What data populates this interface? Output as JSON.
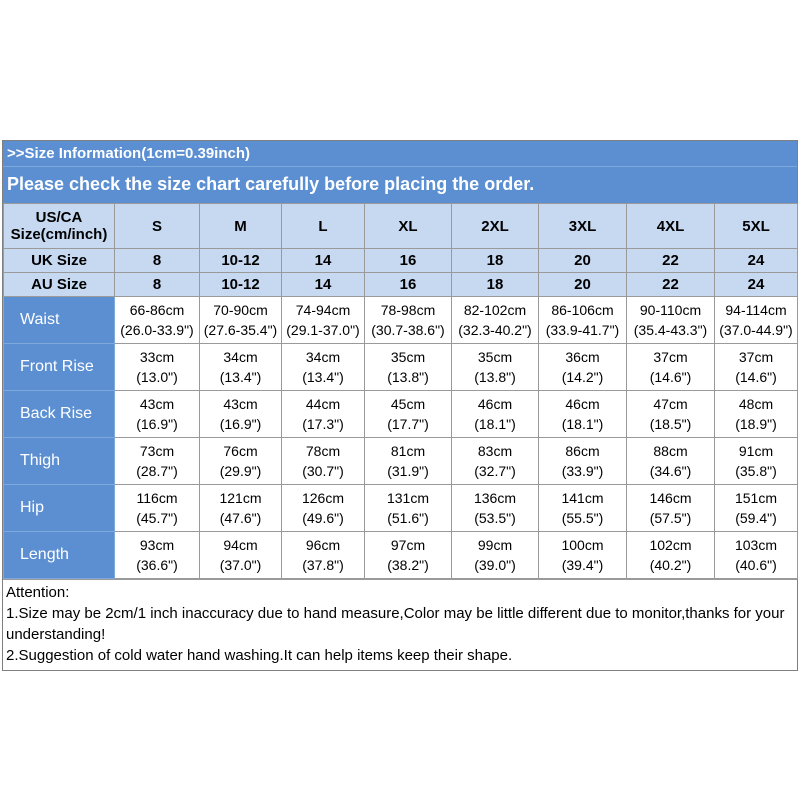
{
  "header": {
    "info": ">>Size Information(1cm=0.39inch)",
    "notice": "Please check the size chart carefully before placing the order."
  },
  "table": {
    "corner": [
      "US/CA",
      "Size(cm/inch)"
    ],
    "sizes": [
      "S",
      "M",
      "L",
      "XL",
      "2XL",
      "3XL",
      "4XL",
      "5XL"
    ],
    "uk": {
      "label": "UK Size",
      "values": [
        "8",
        "10-12",
        "14",
        "16",
        "18",
        "20",
        "22",
        "24"
      ]
    },
    "au": {
      "label": "AU Size",
      "values": [
        "8",
        "10-12",
        "14",
        "16",
        "18",
        "20",
        "22",
        "24"
      ]
    },
    "rows": [
      {
        "label": "Waist",
        "cm": [
          "66-86cm",
          "70-90cm",
          "74-94cm",
          "78-98cm",
          "82-102cm",
          "86-106cm",
          "90-110cm",
          "94-114cm"
        ],
        "inch": [
          "(26.0-33.9\")",
          "(27.6-35.4\")",
          "(29.1-37.0\")",
          "(30.7-38.6\")",
          "(32.3-40.2\")",
          "(33.9-41.7\")",
          "(35.4-43.3\")",
          "(37.0-44.9\")"
        ]
      },
      {
        "label": "Front Rise",
        "cm": [
          "33cm",
          "34cm",
          "34cm",
          "35cm",
          "35cm",
          "36cm",
          "37cm",
          "37cm"
        ],
        "inch": [
          "(13.0\")",
          "(13.4\")",
          "(13.4\")",
          "(13.8\")",
          "(13.8\")",
          "(14.2\")",
          "(14.6\")",
          "(14.6\")"
        ]
      },
      {
        "label": "Back Rise",
        "cm": [
          "43cm",
          "43cm",
          "44cm",
          "45cm",
          "46cm",
          "46cm",
          "47cm",
          "48cm"
        ],
        "inch": [
          "(16.9\")",
          "(16.9\")",
          "(17.3\")",
          "(17.7\")",
          "(18.1\")",
          "(18.1\")",
          "(18.5\")",
          "(18.9\")"
        ]
      },
      {
        "label": "Thigh",
        "cm": [
          "73cm",
          "76cm",
          "78cm",
          "81cm",
          "83cm",
          "86cm",
          "88cm",
          "91cm"
        ],
        "inch": [
          "(28.7\")",
          "(29.9\")",
          "(30.7\")",
          "(31.9\")",
          "(32.7\")",
          "(33.9\")",
          "(34.6\")",
          "(35.8\")"
        ]
      },
      {
        "label": "Hip",
        "cm": [
          "116cm",
          "121cm",
          "126cm",
          "131cm",
          "136cm",
          "141cm",
          "146cm",
          "151cm"
        ],
        "inch": [
          "(45.7\")",
          "(47.6\")",
          "(49.6\")",
          "(51.6\")",
          "(53.5\")",
          "(55.5\")",
          "(57.5\")",
          "(59.4\")"
        ]
      },
      {
        "label": "Length",
        "cm": [
          "93cm",
          "94cm",
          "96cm",
          "97cm",
          "99cm",
          "100cm",
          "102cm",
          "103cm"
        ],
        "inch": [
          "(36.6\")",
          "(37.0\")",
          "(37.8\")",
          "(38.2\")",
          "(39.0\")",
          "(39.4\")",
          "(40.2\")",
          "(40.6\")"
        ]
      }
    ]
  },
  "attention": {
    "title": "Attention:",
    "note1": "1.Size may be 2cm/1 inch inaccuracy due to hand measure,Color may be little different due to monitor,thanks for your understanding!",
    "note2": "2.Suggestion of cold water hand washing.It can help items keep their shape."
  },
  "colors": {
    "banner": "#5b8fd1",
    "header_cells": "#c6d9f1"
  }
}
